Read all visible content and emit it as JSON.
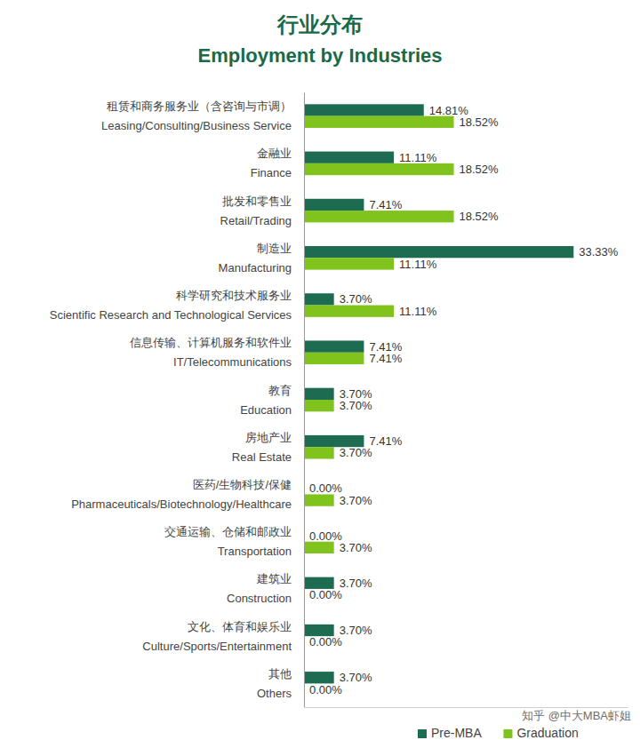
{
  "chart_data": {
    "type": "bar",
    "orientation": "horizontal",
    "title": "行业分布",
    "subtitle": "Employment by Industries",
    "categories": [
      "租赁和商务服务业（含咨询与市调）\nLeasing/Consulting/Business Service",
      "金融业\nFinance",
      "批发和零售业\nRetail/Trading",
      "制造业\nManufacturing",
      "科学研究和技术服务业\nScientific Research and Technological Services",
      "信息传输、计算机服务和软件业\nIT/Telecommunications",
      "教育\nEducation",
      "房地产业\nReal Estate",
      "医药/生物科技/保健\nPharmaceuticals/Biotechnology/Healthcare",
      "交通运输、仓储和邮政业\nTransportation",
      "建筑业\nConstruction",
      "文化、体育和娱乐业\nCulture/Sports/Entertainment",
      "其他\nOthers"
    ],
    "series": [
      {
        "name": "Pre-MBA",
        "color": "#1d6b50",
        "values": [
          14.81,
          11.11,
          7.41,
          33.33,
          3.7,
          7.41,
          3.7,
          7.41,
          0.0,
          0.0,
          3.7,
          3.7,
          3.7
        ],
        "value_labels": [
          "14.81%",
          "11.11%",
          "7.41%",
          "33.33%",
          "3.70%",
          "7.41%",
          "3.70%",
          "7.41%",
          "0.00%",
          "0.00%",
          "3.70%",
          "3.70%",
          "3.70%"
        ]
      },
      {
        "name": "Graduation",
        "color": "#7fc31c",
        "values": [
          18.52,
          18.52,
          18.52,
          11.11,
          11.11,
          7.41,
          3.7,
          3.7,
          3.7,
          3.7,
          0.0,
          0.0,
          0.0
        ],
        "value_labels": [
          "18.52%",
          "18.52%",
          "18.52%",
          "11.11%",
          "11.11%",
          "7.41%",
          "3.70%",
          "3.70%",
          "3.70%",
          "3.70%",
          "0.00%",
          "0.00%",
          "0.00%"
        ]
      }
    ],
    "xlim": [
      0,
      40
    ],
    "data_labels": true,
    "tick_labels": "y",
    "legend": "bottom",
    "annotations": [
      "知乎 @中大MBA虾姐"
    ]
  }
}
